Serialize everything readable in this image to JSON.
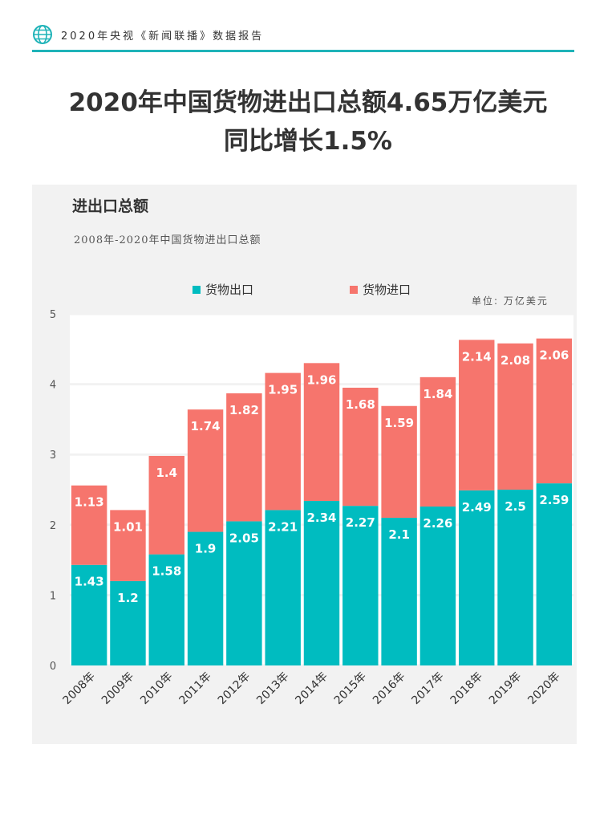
{
  "header": {
    "text": "2020年央视《新闻联播》数据报告"
  },
  "title": {
    "line1": "2020年中国货物进出口总额4.65万亿美元",
    "line2": "同比增长1.5%"
  },
  "chart": {
    "title": "进出口总额",
    "subtitle": "2008年-2020年中国货物进出口总额",
    "unit": "单位: 万亿美元"
  },
  "colors": {
    "export": "#00bcc0",
    "import": "#f6756d",
    "accent": "#1fb3b8"
  },
  "chart_data": {
    "type": "bar",
    "stacked": true,
    "categories": [
      "2008年",
      "2009年",
      "2010年",
      "2011年",
      "2012年",
      "2013年",
      "2014年",
      "2015年",
      "2016年",
      "2017年",
      "2018年",
      "2019年",
      "2020年"
    ],
    "series": [
      {
        "name": "货物出口",
        "values": [
          1.43,
          1.2,
          1.58,
          1.9,
          2.05,
          2.21,
          2.34,
          2.27,
          2.1,
          2.26,
          2.49,
          2.5,
          2.59
        ]
      },
      {
        "name": "货物进口",
        "values": [
          1.13,
          1.01,
          1.4,
          1.74,
          1.82,
          1.95,
          1.96,
          1.68,
          1.59,
          1.84,
          2.14,
          2.08,
          2.06
        ]
      }
    ],
    "ylim": [
      0,
      5
    ],
    "yticks": [
      0,
      1,
      2,
      3,
      4,
      5
    ],
    "legend": "top",
    "grid": true
  }
}
